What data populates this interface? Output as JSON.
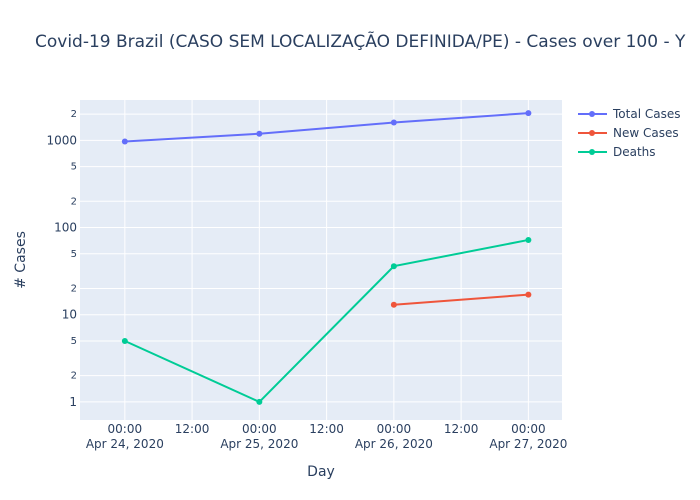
{
  "chart_data": {
    "type": "line",
    "title": "Covid-19 Brazil (CASO SEM LOCALIZAÇÃO DEFINIDA/PE) - Cases over 100 - Y",
    "xlabel": "Day",
    "ylabel": "# Cases",
    "y_scale": "log",
    "ylim": [
      0.62,
      2900
    ],
    "xlim": [
      "2020-04-23 16:00",
      "2020-04-27 06:00"
    ],
    "grid": true,
    "legend_position": "top-right",
    "x_ticks": [
      {
        "top": "00:00",
        "bottom": "Apr 24, 2020"
      },
      {
        "top": "12:00",
        "bottom": ""
      },
      {
        "top": "00:00",
        "bottom": "Apr 25, 2020"
      },
      {
        "top": "12:00",
        "bottom": ""
      },
      {
        "top": "00:00",
        "bottom": "Apr 26, 2020"
      },
      {
        "top": "12:00",
        "bottom": ""
      },
      {
        "top": "00:00",
        "bottom": "Apr 27, 2020"
      }
    ],
    "y_ticks_major": [
      "1",
      "10",
      "100",
      "1000"
    ],
    "y_ticks_minor": [
      "2",
      "5"
    ],
    "series": [
      {
        "name": "Total Cases",
        "color": "#636efa",
        "x": [
          "2020-04-24",
          "2020-04-25",
          "2020-04-26",
          "2020-04-27"
        ],
        "values": [
          970,
          1190,
          1600,
          2050
        ]
      },
      {
        "name": "New Cases",
        "color": "#ef553b",
        "x": [
          "2020-04-26",
          "2020-04-27"
        ],
        "values": [
          13,
          17
        ]
      },
      {
        "name": "Deaths",
        "color": "#00cc96",
        "x": [
          "2020-04-24",
          "2020-04-25",
          "2020-04-26",
          "2020-04-27"
        ],
        "values": [
          5,
          1,
          36,
          72
        ]
      }
    ]
  }
}
